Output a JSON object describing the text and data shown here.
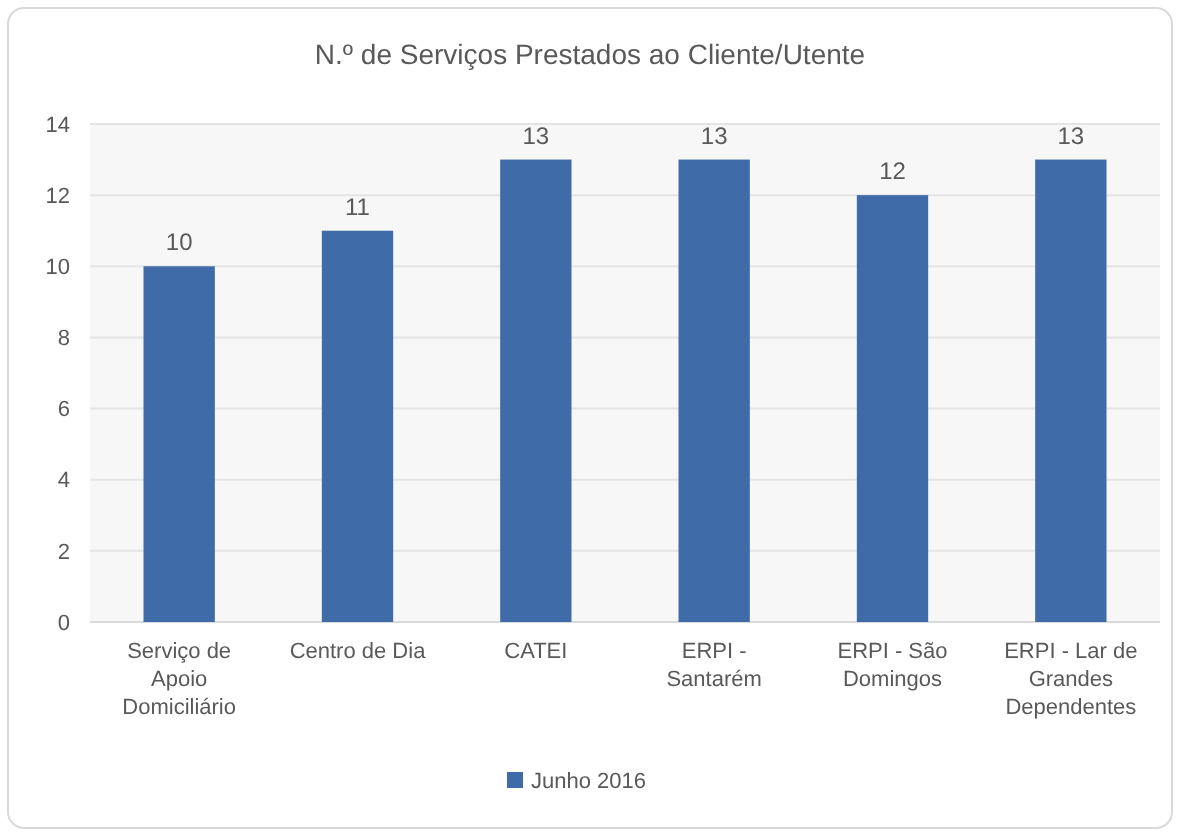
{
  "chart_data": {
    "type": "bar",
    "title": "N.º de Serviços Prestados ao Cliente/Utente",
    "categories": [
      "Serviço de Apoio Domiciliário",
      "Centro de Dia",
      "CATEI",
      "ERPI - Santarém",
      "ERPI - São Domingos",
      "ERPI - Lar de Grandes Dependentes"
    ],
    "series": [
      {
        "name": "Junho 2016",
        "color": "#3f6ca8",
        "values": [
          10,
          11,
          13,
          13,
          12,
          13
        ]
      }
    ],
    "ylim": [
      0,
      14
    ],
    "yticks": [
      0,
      2,
      4,
      6,
      8,
      10,
      12,
      14
    ],
    "grid": "y",
    "legend": "bottom",
    "data_labels": true
  }
}
